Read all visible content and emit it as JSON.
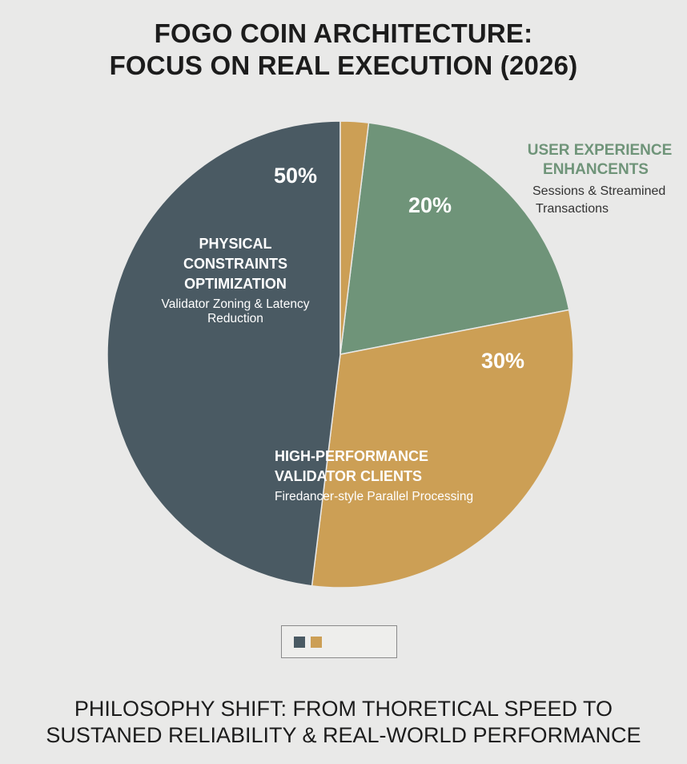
{
  "colors": {
    "background": "#e9e9e8",
    "physical": "#4a5a63",
    "validator": "#cc9f55",
    "ux": "#6f9479"
  },
  "chart_data": {
    "type": "pie",
    "title": [
      "FOGO COIN ARCHITECTURE:",
      "FOCUS ON REAL EXECUTION (2026)"
    ],
    "slices": [
      {
        "label": "50%",
        "value": 50,
        "name": [
          "PHYSICAL",
          "CONSTRAINTS",
          "OPTIMIZATION"
        ],
        "subtitle": "Validator Zoning & Latency Reduction",
        "color": "#4a5a63"
      },
      {
        "label": "30%",
        "value": 30,
        "name": [
          "HIGH-PERFORMANCE",
          "VALIDATOR CLIENTS"
        ],
        "subtitle": "Firedancer-style Parallel Processing",
        "color": "#cc9f55"
      },
      {
        "label": "20%",
        "value": 20,
        "name": [
          "USER EXPERIENCE",
          "ENHANCENTS"
        ],
        "subtitle": [
          "Sessions & Streamined",
          "Transactions"
        ],
        "color": "#6f9479"
      }
    ],
    "legend": {
      "placement": "bottom-center",
      "swatches": [
        "#4a5a63",
        "#cc9f55"
      ]
    }
  },
  "footer": [
    "PHILOSOPHY SHIFT: FROM THORETICAL SPEED TO",
    "SUSTANED RELIABILITY & REAL-WORLD PERFORMANCE"
  ]
}
